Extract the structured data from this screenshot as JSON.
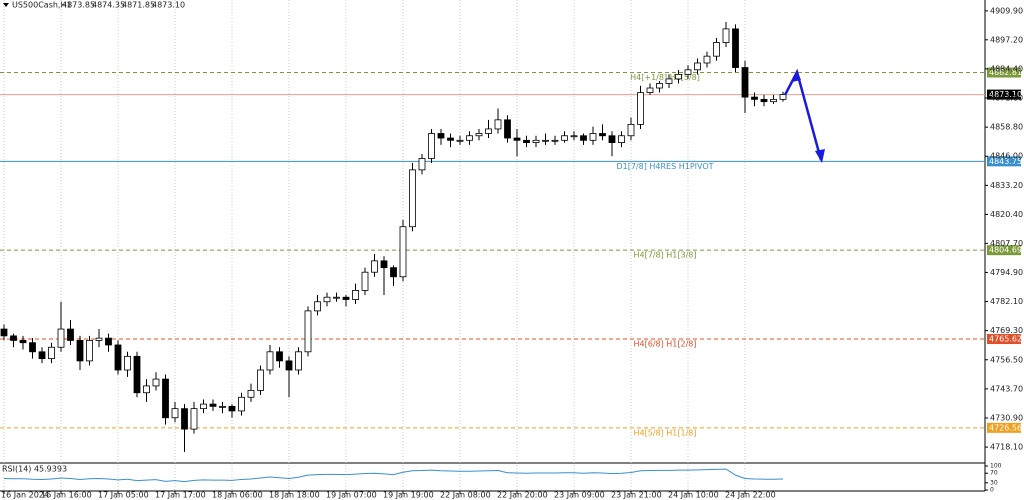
{
  "chart_data": {
    "type": "candlestick",
    "title": "US500Cash,H1",
    "header_values": [
      4873.85,
      4874.35,
      4871.85,
      {
        "value": 4873.1,
        "label": "4873.10"
      }
    ],
    "categories": [
      "16 Jan 2024",
      null,
      null,
      null,
      null,
      null,
      "16 Jan 16:00",
      null,
      null,
      null,
      null,
      null,
      "17 Jan 05:00",
      null,
      null,
      null,
      null,
      null,
      "17 Jan 17:00",
      null,
      null,
      null,
      null,
      null,
      "18 Jan 06:00",
      null,
      null,
      null,
      null,
      null,
      "18 Jan 18:00",
      null,
      null,
      null,
      null,
      null,
      "19 Jan 07:00",
      null,
      null,
      null,
      null,
      null,
      "19 Jan 19:00",
      null,
      null,
      null,
      null,
      null,
      "22 Jan 08:00",
      null,
      null,
      null,
      null,
      null,
      "22 Jan 20:00",
      null,
      null,
      null,
      null,
      null,
      "23 Jan 09:00",
      null,
      null,
      null,
      null,
      null,
      "23 Jan 21:00",
      null,
      null,
      null,
      null,
      null,
      "24 Jan 10:00",
      null,
      null,
      null,
      null,
      null,
      "24 Jan 22:00",
      null,
      null,
      null,
      null
    ],
    "ohlc": [
      [
        4770,
        4772,
        4765,
        4767
      ],
      [
        4767,
        4768,
        4762,
        4765
      ],
      [
        4765,
        4767,
        4761,
        4764
      ],
      [
        4764,
        4766,
        4757,
        4760
      ],
      [
        4760,
        4762,
        4755,
        4757
      ],
      [
        4757,
        4764,
        4755,
        4762
      ],
      [
        4762,
        4782,
        4760,
        4770
      ],
      [
        4770,
        4774,
        4763,
        4765
      ],
      [
        4765,
        4767,
        4752,
        4756
      ],
      [
        4756,
        4767,
        4754,
        4765
      ],
      [
        4765,
        4770,
        4762,
        4766
      ],
      [
        4766,
        4768,
        4760,
        4763
      ],
      [
        4763,
        4765,
        4750,
        4752
      ],
      [
        4752,
        4760,
        4749,
        4758
      ],
      [
        4758,
        4760,
        4740,
        4742
      ],
      [
        4742,
        4748,
        4738,
        4745
      ],
      [
        4745,
        4751,
        4743,
        4748
      ],
      [
        4748,
        4750,
        4728,
        4731
      ],
      [
        4731,
        4738,
        4729,
        4735
      ],
      [
        4735,
        4737,
        4716,
        4726
      ],
      [
        4726,
        4738,
        4724,
        4735
      ],
      [
        4735,
        4739,
        4733,
        4737
      ],
      [
        4737,
        4739,
        4734,
        4736
      ],
      [
        4736,
        4738,
        4733,
        4736
      ],
      [
        4736,
        4737,
        4731,
        4734
      ],
      [
        4734,
        4742,
        4732,
        4740
      ],
      [
        4740,
        4746,
        4738,
        4743
      ],
      [
        4743,
        4754,
        4741,
        4752
      ],
      [
        4752,
        4763,
        4750,
        4760
      ],
      [
        4760,
        4762,
        4753,
        4756
      ],
      [
        4756,
        4758,
        4740,
        4752
      ],
      [
        4752,
        4762,
        4750,
        4760
      ],
      [
        4760,
        4780,
        4758,
        4778
      ],
      [
        4778,
        4785,
        4776,
        4782
      ],
      [
        4782,
        4786,
        4780,
        4784
      ],
      [
        4784,
        4786,
        4782,
        4784
      ],
      [
        4784,
        4785,
        4780,
        4783
      ],
      [
        4783,
        4790,
        4781,
        4787
      ],
      [
        4787,
        4797,
        4785,
        4795
      ],
      [
        4795,
        4803,
        4793,
        4800
      ],
      [
        4800,
        4802,
        4785,
        4797
      ],
      [
        4797,
        4798,
        4789,
        4793
      ],
      [
        4793,
        4818,
        4791,
        4815
      ],
      [
        4815,
        4843,
        4813,
        4840
      ],
      [
        4840,
        4847,
        4838,
        4845
      ],
      [
        4845,
        4858,
        4843,
        4856
      ],
      [
        4856,
        4858,
        4851,
        4854
      ],
      [
        4854,
        4856,
        4850,
        4853
      ],
      [
        4853,
        4855,
        4851,
        4853
      ],
      [
        4853,
        4857,
        4851,
        4855
      ],
      [
        4855,
        4858,
        4853,
        4856
      ],
      [
        4856,
        4862,
        4854,
        4858
      ],
      [
        4858,
        4867,
        4856,
        4862
      ],
      [
        4862,
        4864,
        4852,
        4854
      ],
      [
        4854,
        4858,
        4846,
        4853
      ],
      [
        4853,
        4855,
        4850,
        4852
      ],
      [
        4852,
        4855,
        4850,
        4853
      ],
      [
        4853,
        4856,
        4851,
        4853
      ],
      [
        4853,
        4855,
        4851,
        4853
      ],
      [
        4853,
        4857,
        4852,
        4855
      ],
      [
        4855,
        4857,
        4853,
        4855
      ],
      [
        4855,
        4856,
        4851,
        4853
      ],
      [
        4853,
        4859,
        4851,
        4856
      ],
      [
        4856,
        4860,
        4853,
        4855
      ],
      [
        4855,
        4857,
        4846,
        4852
      ],
      [
        4852,
        4857,
        4850,
        4855
      ],
      [
        4855,
        4863,
        4853,
        4860
      ],
      [
        4860,
        4877,
        4858,
        4874
      ],
      [
        4874,
        4878,
        4873,
        4876
      ],
      [
        4876,
        4879,
        4874,
        4878
      ],
      [
        4878,
        4882,
        4876,
        4880
      ],
      [
        4880,
        4884,
        4878,
        4882
      ],
      [
        4882,
        4886,
        4880,
        4884
      ],
      [
        4884,
        4889,
        4882,
        4887
      ],
      [
        4887,
        4892,
        4885,
        4890
      ],
      [
        4890,
        4898,
        4888,
        4896
      ],
      [
        4896,
        4905,
        4894,
        4902
      ],
      [
        4902,
        4904,
        4883,
        4885
      ],
      [
        4885,
        4888,
        4865,
        4872
      ],
      [
        4872,
        4874,
        4868,
        4871
      ],
      [
        4871,
        4873,
        4868,
        4870
      ],
      [
        4870,
        4873,
        4869,
        4871
      ],
      [
        4871,
        4874.35,
        4870,
        4873.1
      ]
    ],
    "up_color": "#ffffff",
    "down_color": "#000000",
    "ylim": [
      4711.1,
      4914.7
    ],
    "yticks": [
      {
        "value": 4909.9,
        "label": "4909.90"
      },
      {
        "value": 4897.2,
        "label": "4897.20"
      },
      {
        "value": 4884.4,
        "label": "4884.40"
      },
      {
        "value": 4871.6,
        "label": "4871.60"
      },
      {
        "value": 4858.8,
        "label": "4858.80"
      },
      {
        "value": 4846,
        "label": "4846.00"
      },
      {
        "value": 4833.2,
        "label": "4833.20"
      },
      {
        "value": 4820.4,
        "label": "4820.40"
      },
      {
        "value": 4807.7,
        "label": "4807.70"
      },
      {
        "value": 4794.9,
        "label": "4794.90"
      },
      {
        "value": 4782.1,
        "label": "4782.10"
      },
      {
        "value": 4769.3,
        "label": "4769.30"
      },
      {
        "value": 4756.5,
        "label": "4756.50"
      },
      {
        "value": 4743.7,
        "label": "4743.70"
      },
      {
        "value": 4730.9,
        "label": "4730.90"
      },
      {
        "value": 4718.1,
        "label": "4718.10"
      }
    ],
    "levels": [
      {
        "value": 4882.81,
        "color": "#7a9a3a",
        "style": "dashed",
        "text": "H4[+1/8] H1[5/8]"
      },
      {
        "value": {
          "value": 4873.1,
          "label": "4873.10"
        },
        "color": "#e8a090",
        "style": "solid"
      },
      {
        "value": 4843.75,
        "color": "#3a8fd0",
        "style": "solid",
        "text": "D1[7/8] H4RES H1PIVOT"
      },
      {
        "value": 4804.69,
        "color": "#7a9a3a",
        "style": "dashed",
        "text": "H4[7/8] H1[3/8]"
      },
      {
        "value": 4765.62,
        "color": "#e0502a",
        "style": "dashed",
        "text": "H4[6/8] H1[2/8]"
      },
      {
        "value": 4726.56,
        "color": "#f0a020",
        "style": "dashed",
        "text": "H4[5/8] H1[1/8]"
      }
    ],
    "rsi": {
      "title": "RSI(14) 45.9393",
      "color": "#3a8fd0",
      "ylim": [
        0,
        100
      ],
      "yticks": [
        100,
        70,
        30,
        0
      ],
      "values": [
        48,
        47,
        47,
        45,
        44,
        46,
        50,
        48,
        44,
        47,
        48,
        46,
        42,
        45,
        39,
        41,
        43,
        36,
        39,
        35,
        40,
        42,
        41,
        41,
        40,
        44,
        46,
        50,
        54,
        51,
        48,
        53,
        62,
        64,
        65,
        65,
        64,
        66,
        69,
        70,
        67,
        64,
        74,
        80,
        81,
        83,
        80,
        79,
        78,
        78,
        79,
        80,
        81,
        72,
        71,
        70,
        71,
        71,
        71,
        72,
        72,
        70,
        72,
        71,
        68,
        70,
        73,
        80,
        81,
        82,
        82,
        83,
        83,
        84,
        85,
        86,
        87,
        62,
        48,
        46,
        45,
        45,
        45.9393
      ]
    }
  }
}
